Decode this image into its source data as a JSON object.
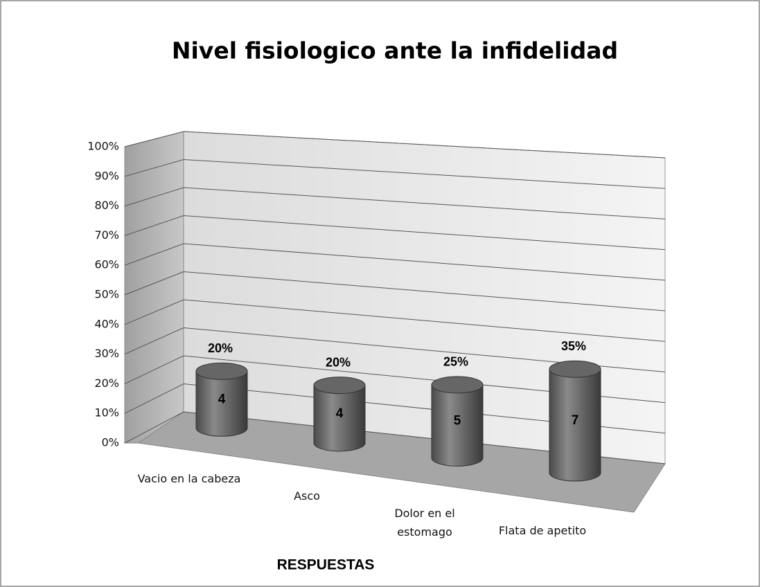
{
  "chart_data": {
    "type": "bar3d-cylinder",
    "title": "Nivel fisiologico ante la infidelidad",
    "x_label": "RESPUESTAS",
    "categories": [
      "Vacio en la cabeza",
      "Asco",
      "Dolor en el estomago",
      "Flata de apetito"
    ],
    "values": [
      20,
      20,
      25,
      35
    ],
    "value_labels": [
      "20%",
      "20%",
      "25%",
      "35%"
    ],
    "counts": [
      4,
      4,
      5,
      7
    ],
    "color": "#666666",
    "ylim": [
      0,
      100
    ],
    "yticks": [
      {
        "value": 0,
        "label": "0%"
      },
      {
        "value": 10,
        "label": "10%"
      },
      {
        "value": 20,
        "label": "20%"
      },
      {
        "value": 30,
        "label": "30%"
      },
      {
        "value": 40,
        "label": "40%"
      },
      {
        "value": 50,
        "label": "50%"
      },
      {
        "value": 60,
        "label": "60%"
      },
      {
        "value": 70,
        "label": "70%"
      },
      {
        "value": 80,
        "label": "80%"
      },
      {
        "value": 90,
        "label": "90%"
      },
      {
        "value": 100,
        "label": "100%"
      }
    ],
    "grid": true
  }
}
